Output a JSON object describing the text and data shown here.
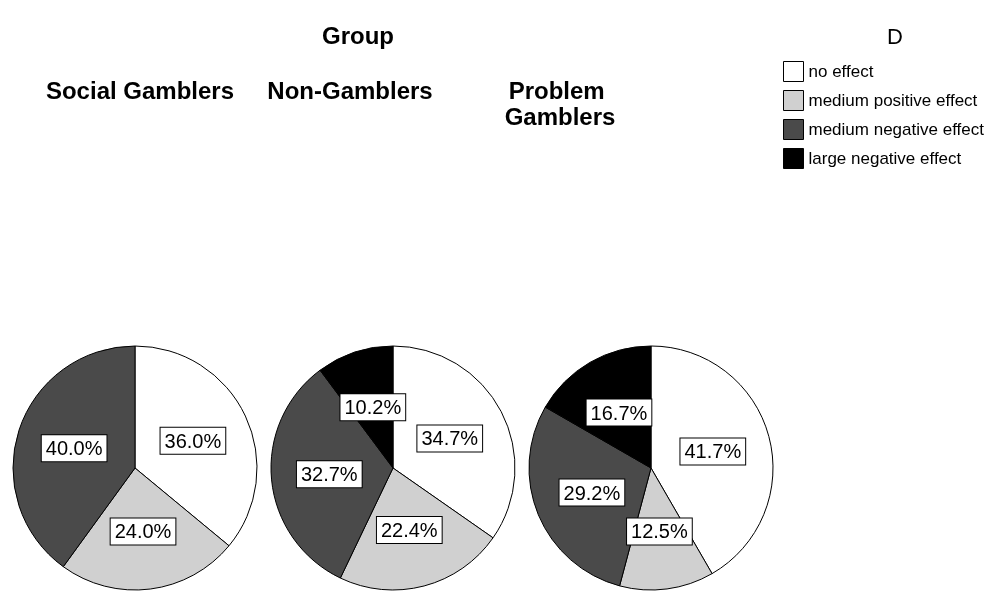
{
  "chart_data": {
    "type": "pie",
    "title": "Group",
    "legend_title": "D",
    "legend": "right",
    "categories": [
      "no effect",
      "medium positive effect",
      "medium negative effect",
      "large negative effect"
    ],
    "colors": [
      "#ffffff",
      "#d0d0d0",
      "#4a4a4a",
      "#000000"
    ],
    "series": [
      {
        "name": "Social Gamblers",
        "values": [
          36.0,
          24.0,
          40.0,
          null
        ],
        "value_labels": [
          "36.0%",
          "24.0%",
          "40.0%",
          null
        ]
      },
      {
        "name": "Non-Gamblers",
        "values": [
          34.7,
          22.4,
          32.7,
          10.2
        ],
        "value_labels": [
          "34.7%",
          "22.4%",
          "32.7%",
          "10.2%"
        ]
      },
      {
        "name": "Problem Gamblers",
        "values": [
          41.7,
          12.5,
          29.2,
          16.7
        ],
        "value_labels": [
          "41.7%",
          "12.5%",
          "29.2%",
          "16.7%"
        ]
      }
    ]
  }
}
